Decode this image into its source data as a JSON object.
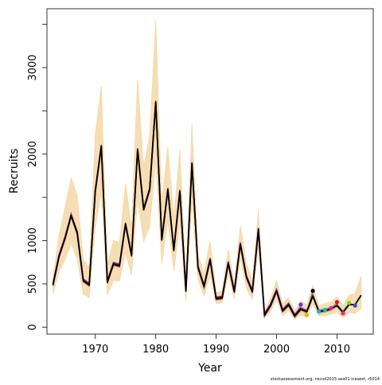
{
  "chart_data": {
    "type": "line",
    "xlabel": "Year",
    "ylabel": "Recruits",
    "xlim": [
      1962,
      2016
    ],
    "ylim": [
      -80,
      3680
    ],
    "x_ticks": [
      1970,
      1980,
      1990,
      2000,
      2010
    ],
    "y_ticks": [
      0,
      500,
      1000,
      2000,
      3000
    ],
    "y_minor_ticks": [
      1500,
      2500,
      3500
    ],
    "grid": false,
    "credit": "stockassessment.org, nscod2015-ass01-icesext, r5014",
    "colors": {
      "band": "#f5deb3",
      "band_line": "#f5d9a8",
      "retro": "#8a2060",
      "main": "#000000"
    },
    "years": [
      1963,
      1964,
      1965,
      1966,
      1967,
      1968,
      1969,
      1970,
      1971,
      1972,
      1973,
      1974,
      1975,
      1976,
      1977,
      1978,
      1979,
      1980,
      1981,
      1982,
      1983,
      1984,
      1985,
      1986,
      1987,
      1988,
      1989,
      1990,
      1991,
      1992,
      1993,
      1994,
      1995,
      1996,
      1997,
      1998,
      1999,
      2000,
      2001,
      2002,
      2003,
      2004,
      2005,
      2006,
      2007,
      2008,
      2009,
      2010,
      2011,
      2012,
      2013,
      2014
    ],
    "estimate": [
      490,
      820,
      1030,
      1290,
      1090,
      540,
      490,
      1570,
      2090,
      520,
      730,
      710,
      1190,
      830,
      2050,
      1360,
      1590,
      2600,
      1010,
      1590,
      890,
      1570,
      420,
      1890,
      690,
      470,
      780,
      330,
      340,
      740,
      410,
      960,
      580,
      410,
      1130,
      140,
      250,
      420,
      190,
      260,
      130,
      210,
      180,
      360,
      180,
      190,
      210,
      250,
      170,
      260,
      260,
      370
    ],
    "upper": [
      570,
      1060,
      1390,
      1730,
      1520,
      790,
      680,
      2230,
      2780,
      720,
      1000,
      980,
      1660,
      1160,
      2860,
      1850,
      2220,
      3550,
      1440,
      2090,
      1260,
      2050,
      550,
      2350,
      840,
      620,
      1000,
      400,
      420,
      900,
      510,
      1170,
      740,
      540,
      1350,
      190,
      330,
      540,
      270,
      340,
      190,
      300,
      260,
      480,
      250,
      270,
      290,
      350,
      250,
      370,
      390,
      590
    ],
    "lower": [
      380,
      640,
      780,
      970,
      790,
      380,
      340,
      1160,
      1560,
      370,
      540,
      530,
      860,
      600,
      1480,
      990,
      1160,
      1930,
      730,
      1230,
      650,
      1200,
      300,
      1470,
      550,
      360,
      600,
      270,
      280,
      610,
      330,
      790,
      450,
      320,
      930,
      100,
      180,
      320,
      130,
      190,
      90,
      140,
      120,
      260,
      130,
      130,
      150,
      170,
      110,
      170,
      160,
      220
    ],
    "retro_endpoints": [
      {
        "year": 2004,
        "value": 260,
        "color": "#7b2fbe"
      },
      {
        "year": 2005,
        "value": 140,
        "color": "#ffb000"
      },
      {
        "year": 2006,
        "value": 420,
        "color": "#000000"
      },
      {
        "year": 2007,
        "value": 180,
        "color": "#2fa8e0"
      },
      {
        "year": 2008,
        "value": 200,
        "color": "#17c0a8"
      },
      {
        "year": 2009,
        "value": 220,
        "color": "#e020a0"
      },
      {
        "year": 2010,
        "value": 290,
        "color": "#e0102a"
      },
      {
        "year": 2011,
        "value": 160,
        "color": "#ff2090"
      },
      {
        "year": 2012,
        "value": 280,
        "color": "#8ad000"
      },
      {
        "year": 2013,
        "value": 250,
        "color": "#3050d0"
      }
    ]
  }
}
